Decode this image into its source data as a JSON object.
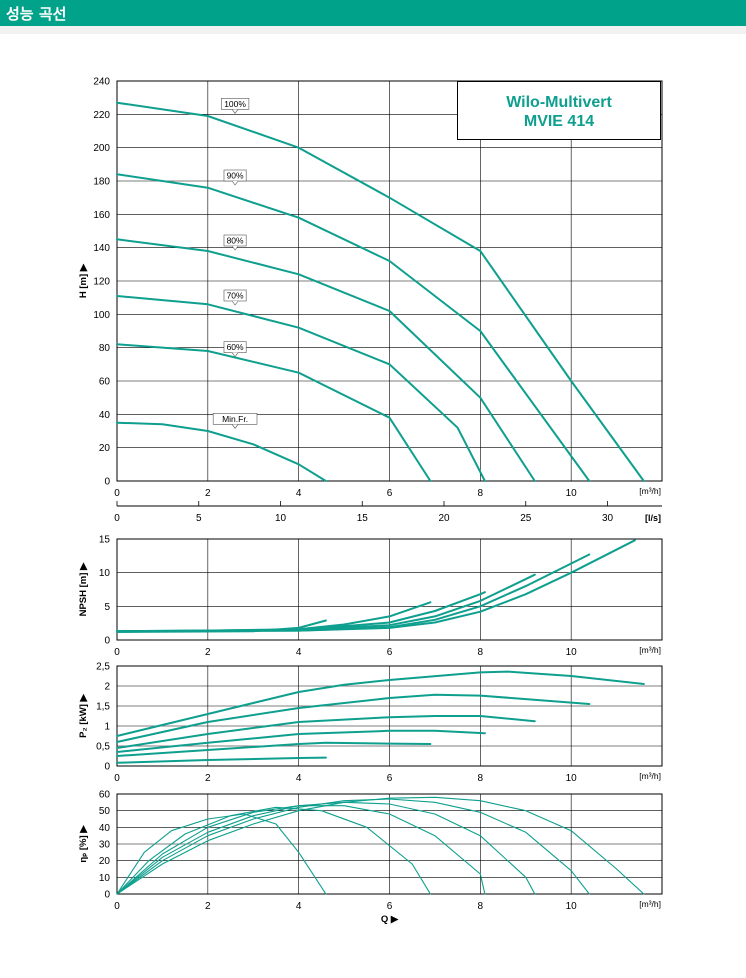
{
  "header": {
    "title": "성능 곡선"
  },
  "product": {
    "line1": "Wilo-Multivert",
    "line2": "MVIE 414"
  },
  "colors": {
    "accent": "#00a38a",
    "curve": "#0e9f8e"
  },
  "chart_data": [
    {
      "type": "line",
      "name": "head",
      "ylabel": "H [m] ▶",
      "xlabel": "[m³/h]",
      "xlim": [
        0,
        12
      ],
      "ylim": [
        0,
        240
      ],
      "xticks": [
        0,
        2,
        4,
        6,
        8,
        10
      ],
      "yticks": [
        0,
        20,
        40,
        60,
        80,
        100,
        120,
        140,
        160,
        180,
        200,
        220,
        240
      ],
      "secondary_axis": {
        "label": "[l/s]",
        "ticks": [
          0,
          5,
          10,
          15,
          20,
          25,
          30
        ],
        "factor": 3.6
      },
      "series": [
        {
          "name": "100%",
          "x": [
            0,
            2,
            4,
            6,
            8,
            10,
            11.6
          ],
          "y": [
            227,
            219,
            200,
            170,
            138,
            60,
            0
          ]
        },
        {
          "name": "90%",
          "x": [
            0,
            2,
            4,
            6,
            8,
            10.4
          ],
          "y": [
            184,
            176,
            158,
            132,
            90,
            0
          ]
        },
        {
          "name": "80%",
          "x": [
            0,
            2,
            4,
            6,
            8,
            9.2
          ],
          "y": [
            145,
            138,
            124,
            102,
            50,
            0
          ]
        },
        {
          "name": "70%",
          "x": [
            0,
            2,
            4,
            6,
            7.5,
            8.1
          ],
          "y": [
            111,
            106,
            92,
            70,
            32,
            0
          ]
        },
        {
          "name": "60%",
          "x": [
            0,
            2,
            4,
            6,
            6.9
          ],
          "y": [
            82,
            78,
            65,
            38,
            0
          ]
        },
        {
          "name": "Min.Fr.",
          "x": [
            0,
            1,
            2,
            3,
            4,
            4.6
          ],
          "y": [
            35,
            34,
            30,
            22,
            10,
            0
          ]
        }
      ],
      "labels": [
        {
          "text": "100%",
          "x": 2.6,
          "y": 220
        },
        {
          "text": "90%",
          "x": 2.6,
          "y": 177
        },
        {
          "text": "80%",
          "x": 2.6,
          "y": 138
        },
        {
          "text": "70%",
          "x": 2.6,
          "y": 105
        },
        {
          "text": "60%",
          "x": 2.6,
          "y": 74
        },
        {
          "text": "Min.Fr.",
          "x": 2.6,
          "y": 31
        }
      ]
    },
    {
      "type": "line",
      "name": "npsh",
      "ylabel": "NPSH [m] ▶",
      "xlabel": "[m³/h]",
      "xlim": [
        0,
        12
      ],
      "ylim": [
        0,
        15
      ],
      "xticks": [
        0,
        2,
        4,
        6,
        8,
        10
      ],
      "yticks": [
        0,
        5,
        10,
        15
      ],
      "series": [
        {
          "name": "100%",
          "x": [
            0,
            4,
            6,
            7,
            8,
            9,
            10,
            11.4
          ],
          "y": [
            1.3,
            1.4,
            1.8,
            2.6,
            4.2,
            6.8,
            10.0,
            14.8
          ]
        },
        {
          "name": "90%",
          "x": [
            0,
            4,
            6,
            7,
            8,
            9,
            10.4
          ],
          "y": [
            1.3,
            1.4,
            1.9,
            3.0,
            5.0,
            8.0,
            12.7
          ]
        },
        {
          "name": "80%",
          "x": [
            0,
            4,
            6,
            7,
            8,
            9.2
          ],
          "y": [
            1.3,
            1.5,
            2.2,
            3.5,
            5.8,
            9.7
          ]
        },
        {
          "name": "70%",
          "x": [
            0,
            4,
            6,
            7,
            8,
            8.1
          ],
          "y": [
            1.3,
            1.5,
            2.6,
            4.3,
            6.8,
            7.1
          ]
        },
        {
          "name": "60%",
          "x": [
            0,
            4,
            5,
            6,
            6.9
          ],
          "y": [
            1.2,
            1.6,
            2.3,
            3.5,
            5.6
          ]
        },
        {
          "name": "Min.Fr.",
          "x": [
            0,
            3,
            4,
            4.6
          ],
          "y": [
            1.2,
            1.3,
            1.8,
            2.9
          ]
        }
      ]
    },
    {
      "type": "line",
      "name": "power",
      "ylabel": "P₂ [kW] ▶",
      "xlabel": "[m³/h]",
      "xlim": [
        0,
        12
      ],
      "ylim": [
        0,
        2.5
      ],
      "xticks": [
        0,
        2,
        4,
        6,
        8,
        10
      ],
      "yticks": [
        "0",
        "0,5",
        "1",
        "1,5",
        "2",
        "2,5"
      ],
      "series": [
        {
          "name": "100%",
          "x": [
            0,
            2,
            4,
            5,
            6,
            8,
            8.6,
            10,
            11.6
          ],
          "y": [
            0.75,
            1.3,
            1.85,
            2.03,
            2.15,
            2.34,
            2.36,
            2.25,
            2.05
          ]
        },
        {
          "name": "90%",
          "x": [
            0,
            2,
            4,
            6,
            7,
            8,
            10.4
          ],
          "y": [
            0.6,
            1.1,
            1.45,
            1.7,
            1.78,
            1.76,
            1.55
          ]
        },
        {
          "name": "80%",
          "x": [
            0,
            2,
            4,
            6,
            7,
            8,
            9.2
          ],
          "y": [
            0.45,
            0.8,
            1.1,
            1.22,
            1.25,
            1.25,
            1.12
          ]
        },
        {
          "name": "70%",
          "x": [
            0,
            2,
            4,
            6,
            7,
            8.1
          ],
          "y": [
            0.35,
            0.58,
            0.8,
            0.88,
            0.88,
            0.82
          ]
        },
        {
          "name": "60%",
          "x": [
            0,
            2,
            4,
            4.6,
            6,
            6.9
          ],
          "y": [
            0.25,
            0.4,
            0.55,
            0.58,
            0.56,
            0.55
          ]
        },
        {
          "name": "Min.Fr.",
          "x": [
            0,
            2,
            4,
            4.6
          ],
          "y": [
            0.08,
            0.15,
            0.2,
            0.21
          ]
        }
      ]
    },
    {
      "type": "line",
      "name": "efficiency",
      "ylabel": "ηₚ [%] ▶",
      "xlabel": "[m³/h]",
      "axis_caption": "Q ▶",
      "xlim": [
        0,
        12
      ],
      "ylim": [
        0,
        60
      ],
      "xticks": [
        0,
        2,
        4,
        6,
        8,
        10
      ],
      "yticks": [
        0,
        10,
        20,
        30,
        40,
        50,
        60
      ],
      "series": [
        {
          "name": "100%",
          "x": [
            0,
            1,
            2,
            3,
            4,
            5,
            6,
            7,
            8,
            9,
            10,
            11,
            11.6
          ],
          "y": [
            0,
            18,
            32,
            42,
            50,
            55,
            57.5,
            58,
            56,
            50,
            38,
            15,
            0
          ]
        },
        {
          "name": "90%",
          "x": [
            0,
            1,
            2,
            3,
            4,
            5,
            6,
            7,
            8,
            9,
            10,
            10.4
          ],
          "y": [
            0,
            20,
            35,
            45,
            52,
            56,
            57,
            55,
            49,
            37,
            14,
            0
          ]
        },
        {
          "name": "80%",
          "x": [
            0,
            1,
            2,
            3,
            4,
            5,
            6,
            7,
            8,
            9,
            9.2
          ],
          "y": [
            0,
            22,
            37,
            47,
            53,
            55,
            54,
            48,
            35,
            10,
            0
          ]
        },
        {
          "name": "70%",
          "x": [
            0,
            1,
            2,
            3,
            4,
            5,
            6,
            7,
            8,
            8.1
          ],
          "y": [
            0,
            24,
            40,
            49,
            53,
            53,
            48,
            35,
            12,
            0
          ]
        },
        {
          "name": "60%",
          "x": [
            0,
            0.7,
            1.5,
            2.5,
            3.5,
            4.5,
            5.5,
            6.5,
            6.9
          ],
          "y": [
            0,
            20,
            36,
            47,
            52,
            50,
            40,
            18,
            0
          ]
        },
        {
          "name": "Min.Fr.",
          "x": [
            0,
            0.6,
            1.2,
            2,
            2.8,
            3.5,
            4,
            4.6
          ],
          "y": [
            0,
            25,
            38,
            45,
            48,
            42,
            25,
            0
          ]
        }
      ]
    }
  ]
}
